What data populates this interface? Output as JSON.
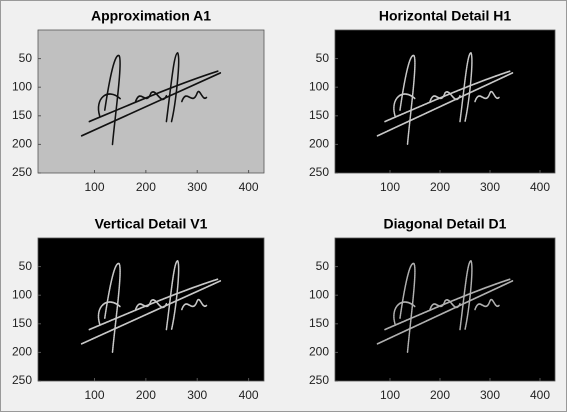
{
  "chart_data": [
    {
      "type": "image",
      "title": "Approximation A1",
      "xlim": [
        -10,
        430
      ],
      "ylim": [
        0,
        250
      ],
      "xticks": [
        100,
        200,
        300,
        400
      ],
      "yticks": [
        50,
        100,
        150,
        200,
        250
      ],
      "background": "#c0c0c0",
      "color": "#111111"
    },
    {
      "type": "image",
      "title": "Horizontal Detail H1",
      "xlim": [
        -10,
        430
      ],
      "ylim": [
        0,
        250
      ],
      "xticks": [
        100,
        200,
        300,
        400
      ],
      "yticks": [
        50,
        100,
        150,
        200,
        250
      ],
      "background": "#000000",
      "color": "#c8c8c8"
    },
    {
      "type": "image",
      "title": "Vertical Detail V1",
      "xlim": [
        -10,
        430
      ],
      "ylim": [
        0,
        250
      ],
      "xticks": [
        100,
        200,
        300,
        400
      ],
      "yticks": [
        50,
        100,
        150,
        200,
        250
      ],
      "background": "#000000",
      "color": "#c8c8c8"
    },
    {
      "type": "image",
      "title": "Diagonal Detail D1",
      "xlim": [
        -10,
        430
      ],
      "ylim": [
        0,
        250
      ],
      "xticks": [
        100,
        200,
        300,
        400
      ],
      "yticks": [
        50,
        100,
        150,
        200,
        250
      ],
      "background": "#000000",
      "color": "#b0b0b0"
    }
  ]
}
